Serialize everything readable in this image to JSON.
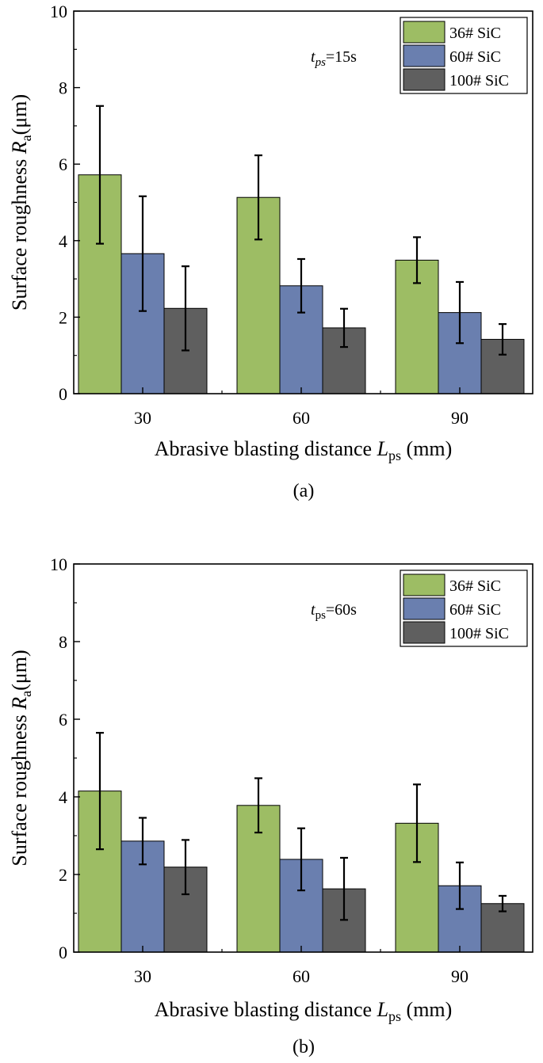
{
  "chart_data": [
    {
      "type": "bar",
      "categories": [
        "30",
        "60",
        "90"
      ],
      "series": [
        {
          "name": "36# SiC",
          "values": [
            5.72,
            5.13,
            3.49
          ],
          "errors": [
            1.8,
            1.1,
            0.6
          ],
          "color": "#9DBD64"
        },
        {
          "name": "60# SiC",
          "values": [
            3.66,
            2.82,
            2.12
          ],
          "errors": [
            1.5,
            0.7,
            0.8
          ],
          "color": "#6A7FAF"
        },
        {
          "name": "100# SiC",
          "values": [
            2.23,
            1.72,
            1.42
          ],
          "errors": [
            1.1,
            0.5,
            0.4
          ],
          "color": "#5F5F5F"
        }
      ],
      "ylim": [
        0,
        10
      ],
      "yticks": [
        "0",
        "2",
        "4",
        "6",
        "8",
        "10"
      ],
      "ylabel": {
        "main": "Surface roughness ",
        "italic": "R",
        "sub": "a",
        "unit": "(μm)"
      },
      "xlabel": {
        "main": "Abrasive blasting distance ",
        "italic": "L",
        "sub": "ps",
        "unit": " (mm)"
      },
      "annotation": {
        "italic": "t",
        "sub": "ps",
        "rest": "=15s"
      },
      "legend_position": "top-right",
      "caption": "(a)"
    },
    {
      "type": "bar",
      "categories": [
        "30",
        "60",
        "90"
      ],
      "series": [
        {
          "name": "36# SiC",
          "values": [
            4.15,
            3.78,
            3.32
          ],
          "errors": [
            1.5,
            0.7,
            1.0
          ],
          "color": "#9DBD64"
        },
        {
          "name": "60# SiC",
          "values": [
            2.86,
            2.39,
            1.71
          ],
          "errors": [
            0.6,
            0.8,
            0.6
          ],
          "color": "#6A7FAF"
        },
        {
          "name": "100# SiC",
          "values": [
            2.19,
            1.63,
            1.25
          ],
          "errors": [
            0.7,
            0.8,
            0.2
          ],
          "color": "#5F5F5F"
        }
      ],
      "ylim": [
        0,
        10
      ],
      "yticks": [
        "0",
        "2",
        "4",
        "6",
        "8",
        "10"
      ],
      "ylabel": {
        "main": "Surface roughness ",
        "italic": "R",
        "sub": "a",
        "unit": "(μm)"
      },
      "xlabel": {
        "main": "Abrasive blasting distance ",
        "italic": "L",
        "sub": "ps",
        "unit": " (mm)"
      },
      "annotation": {
        "italic": "t",
        "sub": "ps",
        "rest": "=60s"
      },
      "legend_position": "top-right",
      "caption": "(b)"
    }
  ]
}
